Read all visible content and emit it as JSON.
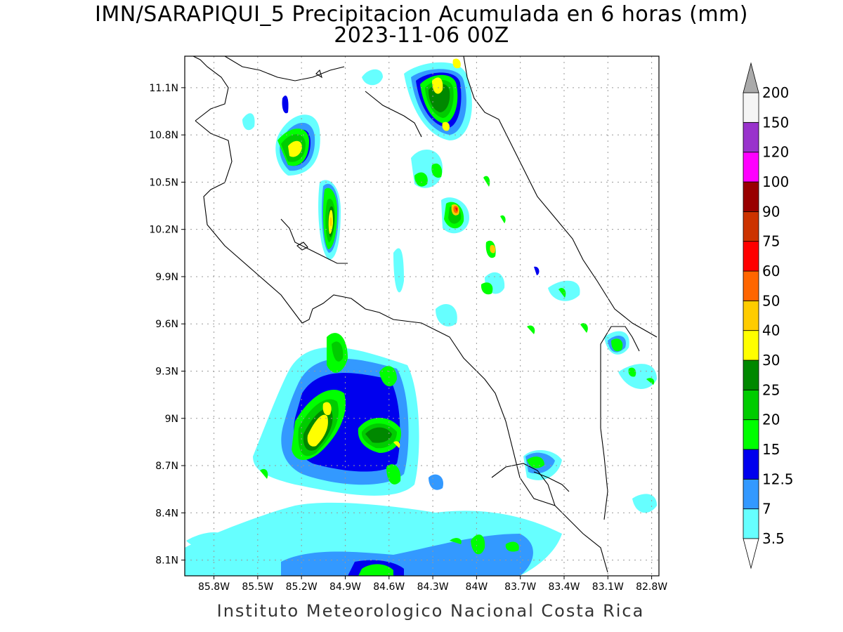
{
  "title": {
    "line1": "IMN/SARAPIQUI_5 Precipitacion Acumulada en 6 horas (mm)",
    "line2": "2023-11-06 00Z"
  },
  "footer": "Instituto Meteorologico Nacional Costa Rica",
  "axes": {
    "longitude_ticks": [
      "85.8W",
      "85.5W",
      "85.2W",
      "84.9W",
      "84.6W",
      "84.3W",
      "84W",
      "83.7W",
      "83.4W",
      "83.1W",
      "82.8W"
    ],
    "latitude_ticks": [
      "11.1N",
      "10.8N",
      "10.5N",
      "10.2N",
      "9.9N",
      "9.6N",
      "9.3N",
      "9N",
      "8.7N",
      "8.4N",
      "8.1N"
    ],
    "lon_range": [
      -86.0,
      -82.75
    ],
    "lat_range": [
      8.0,
      11.3
    ]
  },
  "colorbar": {
    "levels": [
      "3.5",
      "7",
      "12.5",
      "15",
      "20",
      "25",
      "30",
      "40",
      "50",
      "60",
      "75",
      "90",
      "100",
      "120",
      "150",
      "200"
    ],
    "colors": [
      "#66ffff",
      "#3399ff",
      "#0000ee",
      "#00ff00",
      "#00cc00",
      "#008800",
      "#ffff00",
      "#ffcc00",
      "#ff6600",
      "#ff0000",
      "#cc3300",
      "#990000",
      "#ff00ff",
      "#9933cc",
      "#f5f5f5",
      "#aaaaaa"
    ],
    "max_arrow_color": "#aaaaaa",
    "min_arrow_color": "#ffffff"
  }
}
